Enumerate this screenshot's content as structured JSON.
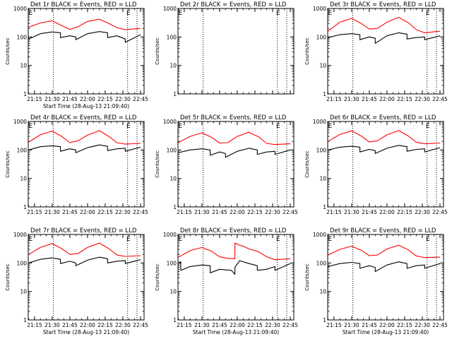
{
  "chart_data": [
    {
      "type": "line",
      "title": "Det 1r BLACK = Events, RED = LLD",
      "ylabel": "Counts/sec",
      "xlabel": "Start Time (28-Aug-13 21:09:40)",
      "yscale": "log",
      "ylim": [
        1,
        1000
      ],
      "xticks": [
        "21:15",
        "21:30",
        "21:45",
        "22:00",
        "22:15",
        "22:30",
        "22:45"
      ],
      "vlines": [
        "21:31",
        "22:34",
        "22:42"
      ],
      "annotations": [
        {
          "text": "E",
          "at": "21:10"
        },
        {
          "text": "E",
          "at": "22:33"
        }
      ],
      "series": [
        {
          "color": "#ff0000",
          "x": [
            "21:10",
            "21:20",
            "21:30",
            "21:38",
            "21:45",
            "21:52",
            "22:00",
            "22:10",
            "22:18",
            "22:25",
            "22:32",
            "22:45"
          ],
          "y": [
            220,
            310,
            370,
            250,
            185,
            230,
            350,
            420,
            300,
            210,
            180,
            200
          ]
        },
        {
          "color": "#000000",
          "x": [
            "21:10",
            "21:20",
            "21:30",
            "21:37",
            "21:37",
            "21:45",
            "21:50",
            "21:50",
            "22:00",
            "22:10",
            "22:17",
            "22:17",
            "22:25",
            "22:32",
            "22:32",
            "22:45"
          ],
          "y": [
            85,
            130,
            150,
            140,
            95,
            110,
            100,
            80,
            130,
            155,
            140,
            95,
            110,
            85,
            65,
            120
          ]
        }
      ]
    },
    {
      "type": "line",
      "title": "Det 2r BLACK = Events, RED = LLD",
      "ylabel": "Counts/sec",
      "xlabel": "",
      "yscale": "log",
      "ylim": [
        1,
        1000
      ],
      "xticks": [
        "",
        "",
        "",
        "",
        "",
        "",
        ""
      ],
      "vlines": [
        "21:31",
        "22:34",
        "22:42"
      ],
      "annotations": [
        {
          "text": "E",
          "at": "21:10"
        },
        {
          "text": "E",
          "at": "22:33"
        }
      ],
      "series": []
    },
    {
      "type": "line",
      "title": "Det 3r BLACK = Events, RED = LLD",
      "ylabel": "Counts/sec",
      "xlabel": "",
      "yscale": "log",
      "ylim": [
        1,
        1000
      ],
      "xticks": [
        "21:15",
        "21:30",
        "21:45",
        "22:00",
        "22:15",
        "22:30",
        "22:45"
      ],
      "vlines": [
        "21:31",
        "22:34",
        "22:42"
      ],
      "annotations": [
        {
          "text": "E",
          "at": "21:10"
        },
        {
          "text": "E",
          "at": "22:33"
        }
      ],
      "series": [
        {
          "color": "#ff0000",
          "x": [
            "21:10",
            "21:20",
            "21:30",
            "21:38",
            "21:45",
            "21:52",
            "22:00",
            "22:10",
            "22:18",
            "22:25",
            "22:32",
            "22:45"
          ],
          "y": [
            160,
            330,
            450,
            300,
            190,
            200,
            330,
            490,
            320,
            180,
            140,
            160
          ]
        },
        {
          "color": "#000000",
          "x": [
            "21:10",
            "21:20",
            "21:30",
            "21:37",
            "21:37",
            "21:45",
            "21:50",
            "21:50",
            "22:00",
            "22:10",
            "22:17",
            "22:17",
            "22:25",
            "22:32",
            "22:32",
            "22:45"
          ],
          "y": [
            95,
            120,
            130,
            120,
            80,
            100,
            90,
            60,
            110,
            140,
            125,
            85,
            95,
            100,
            80,
            110
          ]
        }
      ]
    },
    {
      "type": "line",
      "title": "Det 4r BLACK = Events, RED = LLD",
      "ylabel": "Counts/sec",
      "xlabel": "",
      "yscale": "log",
      "ylim": [
        1,
        1000
      ],
      "xticks": [
        "21:15",
        "21:30",
        "21:45",
        "22:00",
        "22:15",
        "22:30",
        "22:45"
      ],
      "vlines": [
        "21:31",
        "22:34",
        "22:42"
      ],
      "annotations": [
        {
          "text": "E",
          "at": "21:10"
        },
        {
          "text": "E",
          "at": "22:33"
        }
      ],
      "series": [
        {
          "color": "#ff0000",
          "x": [
            "21:10",
            "21:20",
            "21:30",
            "21:38",
            "21:45",
            "21:52",
            "22:00",
            "22:10",
            "22:18",
            "22:25",
            "22:32",
            "22:45"
          ],
          "y": [
            190,
            340,
            460,
            300,
            180,
            210,
            330,
            480,
            300,
            180,
            160,
            170
          ]
        },
        {
          "color": "#000000",
          "x": [
            "21:10",
            "21:20",
            "21:30",
            "21:37",
            "21:37",
            "21:45",
            "21:50",
            "21:50",
            "22:00",
            "22:10",
            "22:17",
            "22:17",
            "22:25",
            "22:32",
            "22:32",
            "22:45"
          ],
          "y": [
            100,
            130,
            140,
            130,
            90,
            110,
            100,
            80,
            120,
            150,
            135,
            95,
            110,
            115,
            90,
            125
          ]
        }
      ]
    },
    {
      "type": "line",
      "title": "Det 5r BLACK = Events, RED = LLD",
      "ylabel": "Counts/sec",
      "xlabel": "",
      "yscale": "log",
      "ylim": [
        1,
        1000
      ],
      "xticks": [
        "21:15",
        "21:30",
        "21:45",
        "22:00",
        "22:15",
        "22:30",
        "22:45"
      ],
      "vlines": [
        "21:31",
        "22:34",
        "22:42"
      ],
      "annotations": [
        {
          "text": "E",
          "at": "21:10"
        },
        {
          "text": "E",
          "at": "22:33"
        }
      ],
      "series": [
        {
          "color": "#ff0000",
          "x": [
            "21:10",
            "21:20",
            "21:30",
            "21:38",
            "21:45",
            "21:52",
            "22:00",
            "22:10",
            "22:18",
            "22:25",
            "22:32",
            "22:45"
          ],
          "y": [
            180,
            300,
            400,
            280,
            175,
            180,
            300,
            420,
            290,
            170,
            155,
            165
          ]
        },
        {
          "color": "#000000",
          "x": [
            "21:10",
            "21:20",
            "21:30",
            "21:37",
            "21:37",
            "21:45",
            "21:50",
            "21:50",
            "22:00",
            "22:10",
            "22:17",
            "22:17",
            "22:25",
            "22:32",
            "22:32",
            "22:45"
          ],
          "y": [
            80,
            100,
            110,
            100,
            65,
            85,
            75,
            55,
            90,
            115,
            100,
            70,
            85,
            90,
            70,
            100
          ]
        }
      ]
    },
    {
      "type": "line",
      "title": "Det 6r BLACK = Events, RED = LLD",
      "ylabel": "Counts/sec",
      "xlabel": "",
      "yscale": "log",
      "ylim": [
        1,
        1000
      ],
      "xticks": [
        "21:15",
        "21:30",
        "21:45",
        "22:00",
        "22:15",
        "22:30",
        "22:45"
      ],
      "vlines": [
        "21:31",
        "22:34",
        "22:42"
      ],
      "annotations": [
        {
          "text": "E",
          "at": "21:10"
        },
        {
          "text": "E",
          "at": "22:33"
        }
      ],
      "series": [
        {
          "color": "#ff0000",
          "x": [
            "21:10",
            "21:20",
            "21:30",
            "21:38",
            "21:45",
            "21:52",
            "22:00",
            "22:10",
            "22:18",
            "22:25",
            "22:32",
            "22:45"
          ],
          "y": [
            200,
            350,
            470,
            310,
            190,
            210,
            340,
            480,
            310,
            185,
            165,
            175
          ]
        },
        {
          "color": "#000000",
          "x": [
            "21:10",
            "21:20",
            "21:30",
            "21:37",
            "21:37",
            "21:45",
            "21:50",
            "21:50",
            "22:00",
            "22:10",
            "22:17",
            "22:17",
            "22:25",
            "22:32",
            "22:32",
            "22:45"
          ],
          "y": [
            100,
            125,
            135,
            125,
            85,
            105,
            95,
            75,
            115,
            145,
            130,
            90,
            105,
            110,
            85,
            120
          ]
        }
      ]
    },
    {
      "type": "line",
      "title": "Det 7r BLACK = Events, RED = LLD",
      "ylabel": "Counts/sec",
      "xlabel": "Start Time (28-Aug-13 21:09:40)",
      "yscale": "log",
      "ylim": [
        1,
        1000
      ],
      "xticks": [
        "21:15",
        "21:30",
        "21:45",
        "22:00",
        "22:15",
        "22:30",
        "22:45"
      ],
      "vlines": [
        "21:31",
        "22:34",
        "22:42"
      ],
      "annotations": [
        {
          "text": "E",
          "at": "21:10"
        },
        {
          "text": "E",
          "at": "22:33"
        }
      ],
      "series": [
        {
          "color": "#ff0000",
          "x": [
            "21:10",
            "21:20",
            "21:30",
            "21:38",
            "21:45",
            "21:52",
            "22:00",
            "22:10",
            "22:18",
            "22:25",
            "22:32",
            "22:45"
          ],
          "y": [
            200,
            350,
            480,
            320,
            200,
            215,
            350,
            500,
            320,
            190,
            170,
            180
          ]
        },
        {
          "color": "#000000",
          "x": [
            "21:10",
            "21:20",
            "21:30",
            "21:37",
            "21:37",
            "21:45",
            "21:50",
            "21:50",
            "22:00",
            "22:10",
            "22:17",
            "22:17",
            "22:25",
            "22:32",
            "22:32",
            "22:45"
          ],
          "y": [
            100,
            135,
            150,
            135,
            95,
            115,
            100,
            80,
            125,
            160,
            140,
            100,
            115,
            120,
            95,
            130
          ]
        }
      ]
    },
    {
      "type": "line",
      "title": "Det 8r BLACK = Events, RED = LLD",
      "ylabel": "Counts/sec",
      "xlabel": "Start Time (28-Aug-13 21:09:40)",
      "yscale": "log",
      "ylim": [
        1,
        1000
      ],
      "xticks": [
        "21:15",
        "21:30",
        "21:45",
        "22:00",
        "22:15",
        "22:30",
        "22:45"
      ],
      "vlines": [
        "21:31",
        "22:34",
        "22:42"
      ],
      "annotations": [
        {
          "text": "E",
          "at": "21:10"
        },
        {
          "text": "E",
          "at": "22:33"
        }
      ],
      "series": [
        {
          "color": "#ff0000",
          "x": [
            "21:10",
            "21:20",
            "21:30",
            "21:38",
            "21:45",
            "21:52",
            "21:58",
            "21:58",
            "22:02",
            "22:05",
            "22:10",
            "22:18",
            "22:25",
            "22:32",
            "22:45"
          ],
          "y": [
            160,
            270,
            350,
            260,
            165,
            145,
            140,
            500,
            420,
            390,
            310,
            250,
            165,
            130,
            140
          ]
        },
        {
          "color": "#000000",
          "x": [
            "21:10",
            "21:12",
            "21:12",
            "21:20",
            "21:30",
            "21:37",
            "21:37",
            "21:45",
            "21:55",
            "21:58",
            "21:58",
            "22:02",
            "22:10",
            "22:17",
            "22:17",
            "22:25",
            "22:32",
            "22:32",
            "22:45"
          ],
          "y": [
            100,
            110,
            55,
            75,
            85,
            80,
            45,
            60,
            55,
            40,
            70,
            120,
            95,
            80,
            55,
            60,
            75,
            55,
            95
          ]
        }
      ]
    },
    {
      "type": "line",
      "title": "Det 9r BLACK = Events, RED = LLD",
      "ylabel": "Counts/sec",
      "xlabel": "Start Time (28-Aug-13 21:09:40)",
      "yscale": "log",
      "ylim": [
        1,
        1000
      ],
      "xticks": [
        "21:15",
        "21:30",
        "21:45",
        "22:00",
        "22:15",
        "22:30",
        "22:45"
      ],
      "vlines": [
        "21:31",
        "22:34",
        "22:42"
      ],
      "annotations": [
        {
          "text": "E",
          "at": "21:10"
        },
        {
          "text": "E",
          "at": "22:33"
        }
      ],
      "series": [
        {
          "color": "#ff0000",
          "x": [
            "21:10",
            "21:20",
            "21:30",
            "21:38",
            "21:45",
            "21:52",
            "22:00",
            "22:10",
            "22:18",
            "22:25",
            "22:32",
            "22:45"
          ],
          "y": [
            190,
            300,
            390,
            280,
            180,
            190,
            310,
            420,
            290,
            175,
            155,
            160
          ]
        },
        {
          "color": "#000000",
          "x": [
            "21:10",
            "21:20",
            "21:30",
            "21:37",
            "21:37",
            "21:45",
            "21:50",
            "21:50",
            "22:00",
            "22:10",
            "22:17",
            "22:17",
            "22:25",
            "22:32",
            "22:32",
            "22:45"
          ],
          "y": [
            75,
            95,
            105,
            95,
            65,
            80,
            70,
            50,
            85,
            110,
            95,
            65,
            80,
            85,
            65,
            95
          ]
        }
      ]
    }
  ]
}
